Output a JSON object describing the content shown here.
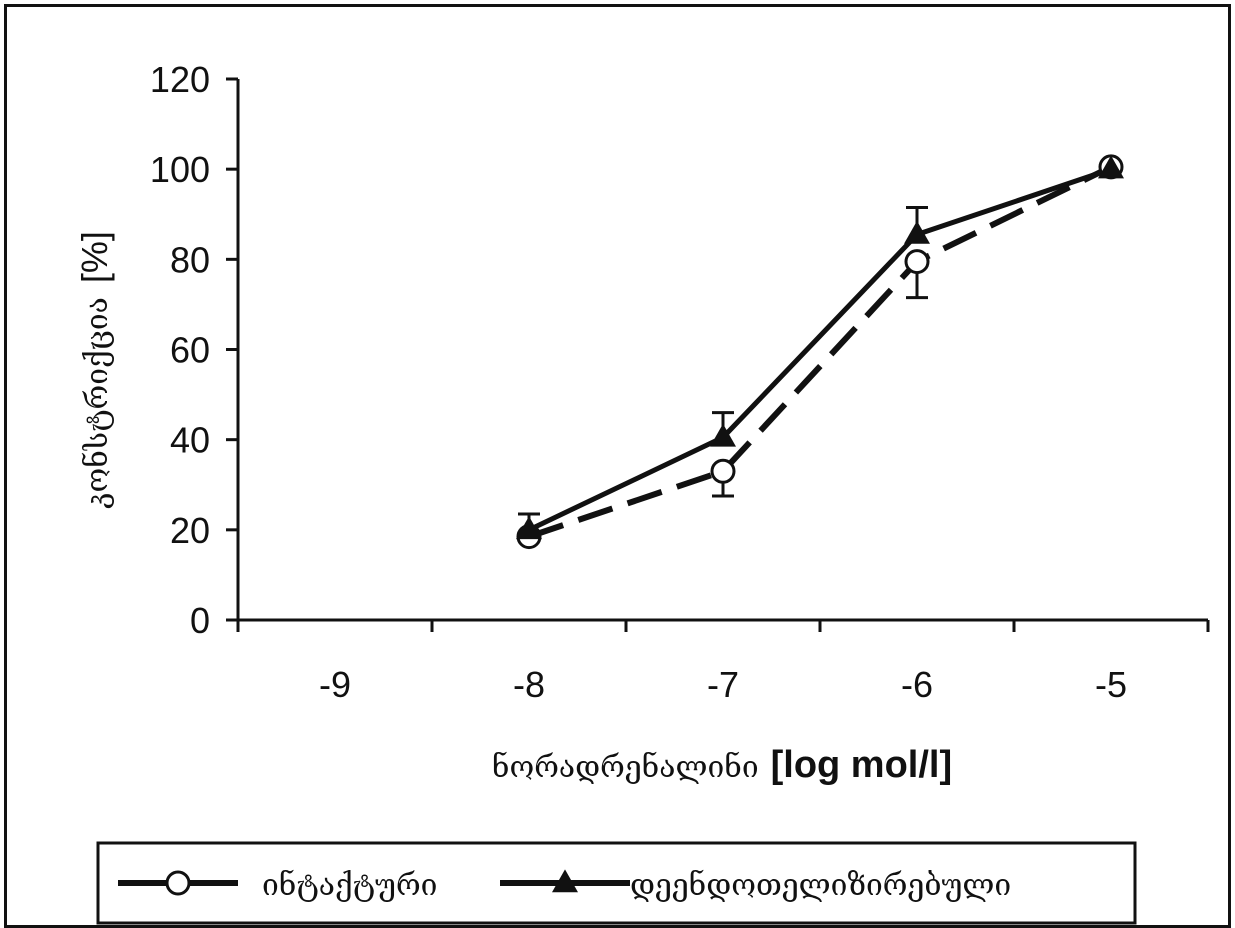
{
  "chart_data": {
    "type": "line",
    "title": "",
    "xlabel": "ნორადრენალინი",
    "xlabel_unit": "[log mol/l]",
    "ylabel": "კონსტრიქცია",
    "ylabel_unit": "[%]",
    "x_tick_labels": [
      "-9",
      "-8",
      "-7",
      "-6",
      "-5"
    ],
    "y_ticks": [
      0,
      20,
      40,
      60,
      80,
      100,
      120
    ],
    "ylim": [
      0,
      120
    ],
    "xlim": [
      -9.5,
      -4.5
    ],
    "grid": false,
    "legend_position": "bottom",
    "series": [
      {
        "name": "ინტაქტური",
        "marker": "open-circle",
        "line_style": "dashed",
        "color": "#111111",
        "x": [
          -8,
          -7,
          -6,
          -5
        ],
        "y": [
          18.5,
          33,
          79.5,
          100.5
        ],
        "error_low": [
          null,
          5.5,
          8,
          null
        ],
        "error_high": [
          null,
          null,
          null,
          null
        ]
      },
      {
        "name": "დეენდოთელიზირებული",
        "marker": "filled-triangle",
        "line_style": "solid",
        "color": "#111111",
        "x": [
          -8,
          -7,
          -6,
          -5
        ],
        "y": [
          20,
          40.5,
          85.5,
          100
        ],
        "error_low": [
          null,
          null,
          null,
          null
        ],
        "error_high": [
          3.5,
          5.5,
          6,
          null
        ]
      }
    ]
  }
}
